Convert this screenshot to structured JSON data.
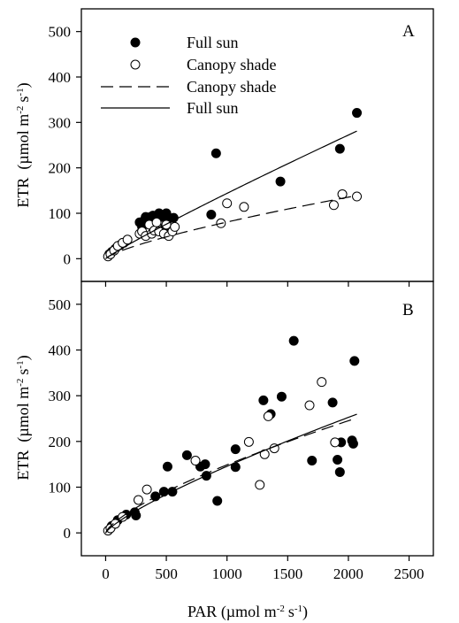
{
  "chart_data": [
    {
      "panel": "A",
      "type": "scatter",
      "xlim": [
        -200,
        2700
      ],
      "ylim": [
        -50,
        550
      ],
      "xticks": [
        0,
        500,
        1000,
        1500,
        2000,
        2500
      ],
      "yticks": [
        0,
        100,
        200,
        300,
        400,
        500
      ],
      "ylabel": "ETR (µmol m-2 s-1)",
      "legend": {
        "placement": "top-left",
        "entries": [
          "Full sun",
          "Canopy shade",
          "Canopy shade",
          "Full sun"
        ]
      },
      "series": [
        {
          "name": "Full sun",
          "kind": "points",
          "marker": "filled-circle",
          "points": [
            [
              30,
              10
            ],
            [
              50,
              15
            ],
            [
              80,
              22
            ],
            [
              120,
              30
            ],
            [
              150,
              35
            ],
            [
              280,
              80
            ],
            [
              300,
              70
            ],
            [
              320,
              85
            ],
            [
              330,
              92
            ],
            [
              350,
              90
            ],
            [
              370,
              92
            ],
            [
              390,
              95
            ],
            [
              420,
              88
            ],
            [
              440,
              100
            ],
            [
              470,
              92
            ],
            [
              490,
              70
            ],
            [
              500,
              100
            ],
            [
              520,
              88
            ],
            [
              560,
              90
            ],
            [
              870,
              97
            ],
            [
              910,
              232
            ],
            [
              1440,
              170
            ],
            [
              1930,
              242
            ],
            [
              2070,
              321
            ]
          ]
        },
        {
          "name": "Canopy shade",
          "kind": "points",
          "marker": "open-circle",
          "points": [
            [
              20,
              5
            ],
            [
              40,
              10
            ],
            [
              70,
              18
            ],
            [
              100,
              28
            ],
            [
              140,
              35
            ],
            [
              180,
              42
            ],
            [
              280,
              55
            ],
            [
              300,
              60
            ],
            [
              330,
              50
            ],
            [
              360,
              75
            ],
            [
              380,
              55
            ],
            [
              400,
              62
            ],
            [
              420,
              80
            ],
            [
              440,
              60
            ],
            [
              480,
              55
            ],
            [
              500,
              75
            ],
            [
              520,
              50
            ],
            [
              550,
              60
            ],
            [
              570,
              70
            ],
            [
              950,
              78
            ],
            [
              1000,
              122
            ],
            [
              1140,
              114
            ],
            [
              1880,
              118
            ],
            [
              1950,
              142
            ],
            [
              2070,
              137
            ]
          ]
        },
        {
          "name": "Canopy shade",
          "kind": "fit",
          "style": "dashed",
          "curve": {
            "form": "power",
            "a": 0.46,
            "b": 0.748
          },
          "x_range": [
            0,
            2070
          ]
        },
        {
          "name": "Full sun",
          "kind": "fit",
          "style": "solid",
          "curve": {
            "form": "power",
            "a": 0.25,
            "b": 0.92
          },
          "x_range": [
            0,
            2070
          ]
        }
      ]
    },
    {
      "panel": "B",
      "type": "scatter",
      "xlim": [
        -200,
        2700
      ],
      "ylim": [
        -50,
        550
      ],
      "xticks": [
        0,
        500,
        1000,
        1500,
        2000,
        2500
      ],
      "yticks": [
        0,
        100,
        200,
        300,
        400,
        500
      ],
      "xlabel": "PAR (µmol m-2 s-1)",
      "ylabel": "ETR (µmol m-2 s-1)",
      "series": [
        {
          "name": "Full sun",
          "kind": "points",
          "marker": "filled-circle",
          "points": [
            [
              50,
              15
            ],
            [
              100,
              28
            ],
            [
              170,
              40
            ],
            [
              240,
              45
            ],
            [
              250,
              38
            ],
            [
              410,
              80
            ],
            [
              480,
              90
            ],
            [
              510,
              145
            ],
            [
              550,
              90
            ],
            [
              670,
              170
            ],
            [
              780,
              145
            ],
            [
              820,
              150
            ],
            [
              830,
              125
            ],
            [
              920,
              70
            ],
            [
              1070,
              183
            ],
            [
              1070,
              144
            ],
            [
              1300,
              290
            ],
            [
              1360,
              260
            ],
            [
              1450,
              298
            ],
            [
              1550,
              420
            ],
            [
              1700,
              158
            ],
            [
              1870,
              285
            ],
            [
              1910,
              160
            ],
            [
              1930,
              133
            ],
            [
              1940,
              198
            ],
            [
              2030,
              202
            ],
            [
              2040,
              195
            ],
            [
              2050,
              376
            ]
          ]
        },
        {
          "name": "Canopy shade",
          "kind": "points",
          "marker": "open-circle",
          "points": [
            [
              20,
              5
            ],
            [
              40,
              10
            ],
            [
              80,
              20
            ],
            [
              140,
              35
            ],
            [
              270,
              72
            ],
            [
              340,
              95
            ],
            [
              740,
              158
            ],
            [
              1180,
              199
            ],
            [
              1270,
              105
            ],
            [
              1310,
              172
            ],
            [
              1340,
              255
            ],
            [
              1390,
              185
            ],
            [
              1680,
              279
            ],
            [
              1780,
              330
            ],
            [
              1890,
              198
            ]
          ]
        },
        {
          "name": "Canopy shade",
          "kind": "fit",
          "style": "dashed",
          "curve": {
            "form": "power",
            "a": 1.03,
            "b": 0.72
          },
          "x_range": [
            0,
            2070
          ]
        },
        {
          "name": "Full sun",
          "kind": "fit",
          "style": "solid",
          "curve": {
            "form": "power",
            "a": 0.6,
            "b": 0.795
          },
          "x_range": [
            0,
            2070
          ]
        }
      ]
    }
  ],
  "labels": {
    "panel_a": "A",
    "panel_b": "B",
    "y_title": "ETR",
    "y_units_a": "(µmol m",
    "y_units_b": "(µmol m",
    "x_title": "PAR (µmol m",
    "exp_minus2": "-2",
    "exp_minus1": "-1",
    "s": "s",
    "close_paren": ")"
  },
  "legend": {
    "full_sun_points": "Full sun",
    "canopy_shade_points": "Canopy shade",
    "canopy_shade_fit": "Canopy shade",
    "full_sun_fit": "Full sun"
  }
}
